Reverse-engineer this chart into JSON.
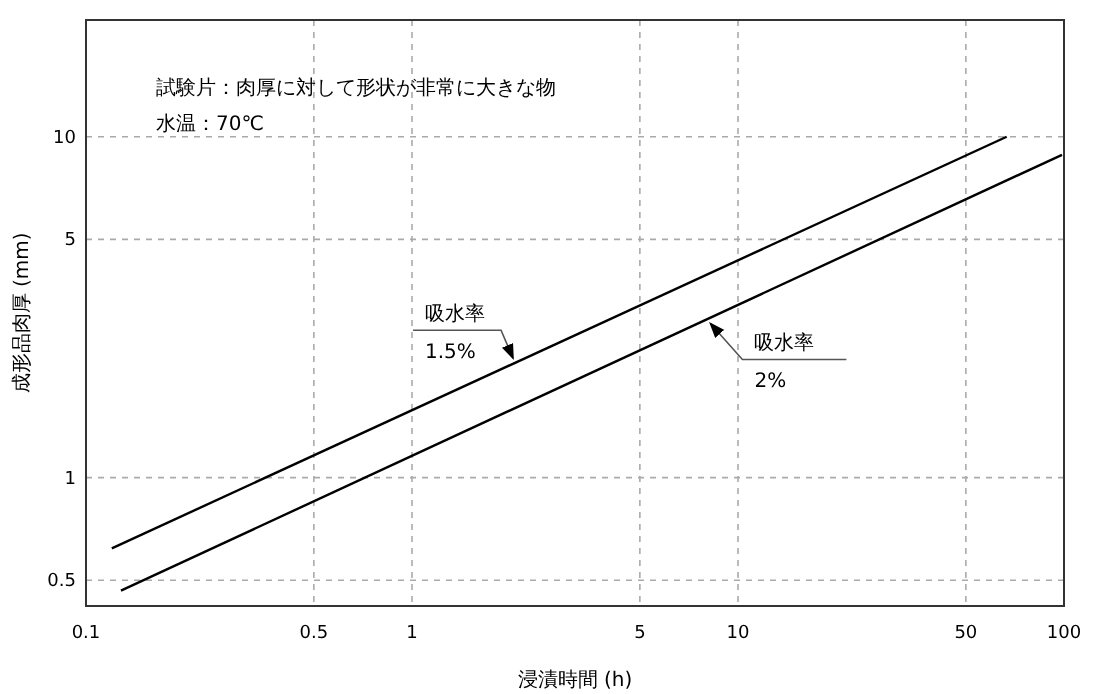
{
  "chart_data": {
    "type": "line",
    "xlabel": "浸漬時間 (h)",
    "ylabel": "成形品肉厚 (mm)",
    "log": "xy",
    "xlim": [
      0.1,
      100
    ],
    "ylim": [
      0.42,
      22
    ],
    "xticks": [
      0.1,
      0.5,
      1,
      5,
      10,
      50,
      100
    ],
    "yticks": [
      0.5,
      1,
      5,
      10
    ],
    "grid": true,
    "marker": "none",
    "line_style": "solid",
    "series": [
      {
        "color": "#000000",
        "x": [
          0.12,
          66.7
        ],
        "values": [
          0.62,
          10
        ]
      },
      {
        "color": "#000000",
        "x": [
          0.128,
          98.6
        ],
        "values": [
          0.466,
          8.85
        ]
      }
    ],
    "annotations": [
      "試験片：肉厚に対して形状が非常に大きな物",
      "水温：70℃",
      {
        "text": "吸水率\n1.5%",
        "x": 2.1,
        "y": 2.18
      },
      {
        "text": "吸水率\n2%",
        "x": 8.0,
        "y": 2.91
      }
    ]
  }
}
